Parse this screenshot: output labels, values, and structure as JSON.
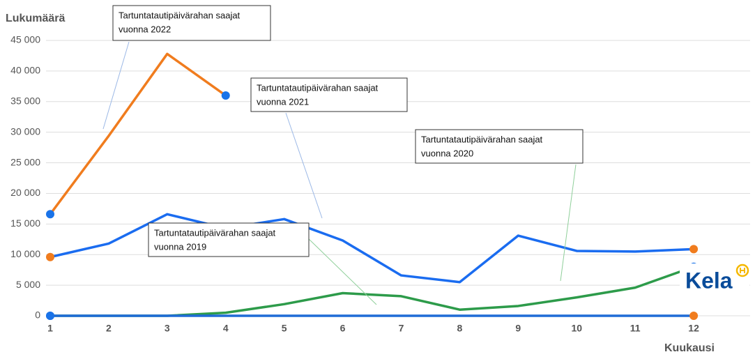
{
  "chart_data": {
    "type": "line",
    "y_label": "Lukumäärä",
    "x_label": "Kuukausi",
    "x": [
      1,
      2,
      3,
      4,
      5,
      6,
      7,
      8,
      9,
      10,
      11,
      12
    ],
    "xlim": [
      1,
      13
    ],
    "xticks": [
      1,
      2,
      3,
      4,
      5,
      6,
      7,
      8,
      9,
      10,
      11,
      12
    ],
    "ylim": [
      0,
      45000
    ],
    "yticks": [
      0,
      {
        "value": 5000,
        "label": "5 000"
      },
      {
        "value": 10000,
        "label": "10 000"
      },
      {
        "value": 15000,
        "label": "15 000"
      },
      {
        "value": 20000,
        "label": "20 000"
      },
      {
        "value": 25000,
        "label": "25 000"
      },
      {
        "value": 30000,
        "label": "30 000"
      },
      {
        "value": 35000,
        "label": "35 000"
      },
      {
        "value": 40000,
        "label": "40 000"
      },
      {
        "value": 45000,
        "label": "45 000"
      }
    ],
    "grid": true,
    "series": [
      {
        "color": "#2d9b4a",
        "marker_colors": [
          "#1a73e8",
          "#1a73e8"
        ],
        "values": [
          0,
          0,
          0,
          500,
          1900,
          3700,
          3200,
          1000,
          1600,
          3000,
          4600,
          8000
        ]
      },
      {
        "color": "#1f6bd6",
        "marker_colors": [
          "#1a73e8",
          "#f07c1e"
        ],
        "values": [
          0,
          0,
          0,
          0,
          0,
          0,
          0,
          0,
          0,
          0,
          0,
          0
        ]
      },
      {
        "color": "#1a6cf0",
        "marker_colors": [
          "#f07c1e",
          "#f07c1e"
        ],
        "values": [
          9600,
          11800,
          16600,
          14300,
          15800,
          12300,
          6600,
          5500,
          13100,
          10600,
          10500,
          10900
        ]
      },
      {
        "color": "#f07c1e",
        "marker_colors": [
          "#1a73e8",
          "#1a73e8"
        ],
        "values": [
          16600,
          29400,
          42800,
          36000,
          null,
          null,
          null,
          null,
          null,
          null,
          null,
          null
        ]
      }
    ],
    "annotations": [
      {
        "lines": [
          "Tartuntatautipäivärahan saajat",
          "vuonna 2022"
        ]
      },
      {
        "lines": [
          "Tartuntatautipäivärahan saajat",
          "vuonna 2021"
        ]
      },
      {
        "lines": [
          "Tartuntatautipäivärahan saajat",
          "vuonna 2020"
        ]
      },
      {
        "lines": [
          "Tartuntatautipäivärahan saajat",
          "vuonna 2019"
        ]
      }
    ],
    "logo": "Kela"
  }
}
